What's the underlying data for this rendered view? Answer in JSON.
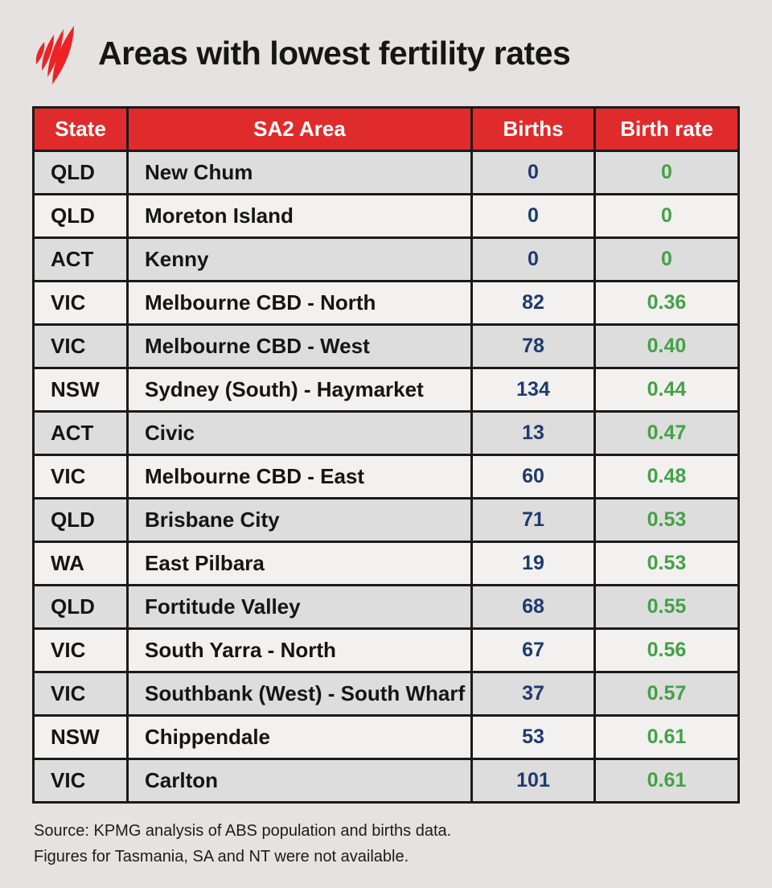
{
  "colors": {
    "page_bg": "#e4e3e1",
    "header_bg": "#e02b2c",
    "header_text": "#ffffff",
    "border": "#1a1a1a",
    "row_odd": "#dedddd",
    "row_even": "#f2f1f0",
    "births_text": "#1e3a6e",
    "rate_text": "#44a147",
    "logo_red": "#ed2224",
    "title_text": "#161616"
  },
  "header": {
    "logo_icon": "sbs-mercury-logo",
    "title": "Areas with lowest fertility rates"
  },
  "table": {
    "columns": [
      "State",
      "SA2 Area",
      "Births",
      "Birth rate"
    ],
    "rows": [
      {
        "state": "QLD",
        "area": "New Chum",
        "births": "0",
        "rate": "0"
      },
      {
        "state": "QLD",
        "area": "Moreton Island",
        "births": "0",
        "rate": "0"
      },
      {
        "state": "ACT",
        "area": "Kenny",
        "births": "0",
        "rate": "0"
      },
      {
        "state": "VIC",
        "area": "Melbourne CBD - North",
        "births": "82",
        "rate": "0.36"
      },
      {
        "state": "VIC",
        "area": "Melbourne CBD - West",
        "births": "78",
        "rate": "0.40"
      },
      {
        "state": "NSW",
        "area": "Sydney (South) - Haymarket",
        "births": "134",
        "rate": "0.44"
      },
      {
        "state": "ACT",
        "area": "Civic",
        "births": "13",
        "rate": "0.47"
      },
      {
        "state": "VIC",
        "area": "Melbourne CBD - East",
        "births": "60",
        "rate": "0.48"
      },
      {
        "state": "QLD",
        "area": "Brisbane City",
        "births": "71",
        "rate": "0.53"
      },
      {
        "state": "WA",
        "area": "East Pilbara",
        "births": "19",
        "rate": "0.53"
      },
      {
        "state": "QLD",
        "area": "Fortitude Valley",
        "births": "68",
        "rate": "0.55"
      },
      {
        "state": "VIC",
        "area": "South Yarra - North",
        "births": "67",
        "rate": "0.56"
      },
      {
        "state": "VIC",
        "area": "Southbank (West) - South Wharf",
        "births": "37",
        "rate": "0.57"
      },
      {
        "state": "NSW",
        "area": "Chippendale",
        "births": "53",
        "rate": "0.61"
      },
      {
        "state": "VIC",
        "area": "Carlton",
        "births": "101",
        "rate": "0.61"
      }
    ]
  },
  "footer": {
    "line1": "Source: KPMG analysis of ABS population and births data.",
    "line2": "Figures for Tasmania, SA and NT were not available."
  },
  "chart_data": {
    "type": "table",
    "title": "Areas with lowest fertility rates",
    "columns": [
      "State",
      "SA2 Area",
      "Births",
      "Birth rate"
    ],
    "rows": [
      [
        "QLD",
        "New Chum",
        0,
        0
      ],
      [
        "QLD",
        "Moreton Island",
        0,
        0
      ],
      [
        "ACT",
        "Kenny",
        0,
        0
      ],
      [
        "VIC",
        "Melbourne CBD - North",
        82,
        0.36
      ],
      [
        "VIC",
        "Melbourne CBD - West",
        78,
        0.4
      ],
      [
        "NSW",
        "Sydney (South) - Haymarket",
        134,
        0.44
      ],
      [
        "ACT",
        "Civic",
        13,
        0.47
      ],
      [
        "VIC",
        "Melbourne CBD - East",
        60,
        0.48
      ],
      [
        "QLD",
        "Brisbane City",
        71,
        0.53
      ],
      [
        "WA",
        "East Pilbara",
        19,
        0.53
      ],
      [
        "QLD",
        "Fortitude Valley",
        68,
        0.55
      ],
      [
        "VIC",
        "South Yarra - North",
        67,
        0.56
      ],
      [
        "VIC",
        "Southbank (West) - South Wharf",
        37,
        0.57
      ],
      [
        "NSW",
        "Chippendale",
        53,
        0.61
      ],
      [
        "VIC",
        "Carlton",
        101,
        0.61
      ]
    ],
    "notes": [
      "Source: KPMG analysis of ABS population and births data.",
      "Figures for Tasmania, SA and NT were not available."
    ]
  }
}
